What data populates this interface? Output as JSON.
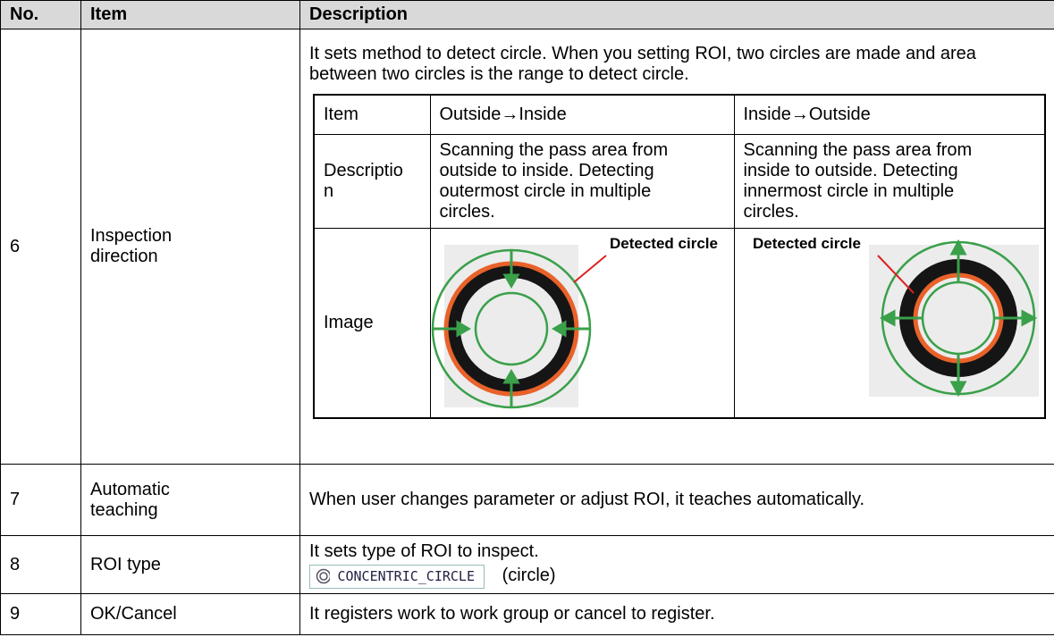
{
  "table": {
    "header": [
      "No.",
      "Item",
      "Description"
    ],
    "rows": [
      {
        "no": "6",
        "item": "Inspection direction",
        "description": "It sets method to detect circle. When you setting ROI, two circles are made and area between two circles is the range to detect circle.",
        "inner_table": {
          "header": [
            "Item",
            "Outside→Inside",
            "Inside→Outside"
          ],
          "description_row": [
            "Description",
            "Scanning the pass area from outside to inside. Detecting outermost circle in multiple circles.",
            "Scanning the pass area from inside to outside. Detecting innermost circle in multiple circles."
          ],
          "image_row": {
            "label": "Image",
            "annotations": [
              "Detected circle",
              "Detected circle"
            ]
          }
        }
      },
      {
        "no": "7",
        "item": "Automatic teaching",
        "description": "When user changes parameter or adjust ROI, it teaches automatically."
      },
      {
        "no": "8",
        "item": "ROI type",
        "description": "It sets type of ROI to inspect.",
        "widget": "CONCENTRIC_CIRCLE",
        "widget_note": "(circle)"
      },
      {
        "no": "9",
        "item": "OK/Cancel",
        "description": "It registers work to work group or cancel to register."
      }
    ]
  }
}
